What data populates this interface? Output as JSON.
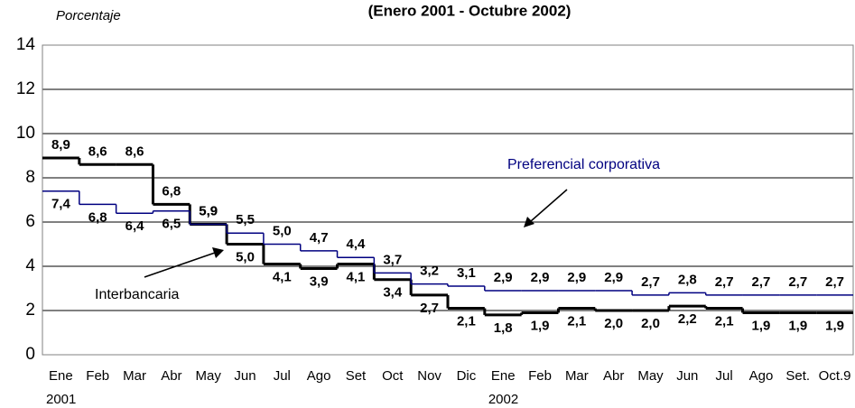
{
  "chart_data": {
    "type": "step",
    "title": "(Enero 2001 - Octubre 2002)",
    "y_label": "Porcentaje",
    "categories": [
      "Ene",
      "Feb",
      "Mar",
      "Abr",
      "May",
      "Jun",
      "Jul",
      "Ago",
      "Set",
      "Oct",
      "Nov",
      "Dic",
      "Ene",
      "Feb",
      "Mar",
      "Abr",
      "May",
      "Jun",
      "Jul",
      "Ago",
      "Set.",
      "Oct.9"
    ],
    "years": [
      {
        "index": 0,
        "label": "2001"
      },
      {
        "index": 12,
        "label": "2002"
      }
    ],
    "series": [
      {
        "name": "Interbancaria",
        "color": "#000000",
        "values": [
          8.9,
          8.6,
          8.6,
          6.8,
          5.9,
          5.0,
          4.1,
          3.9,
          4.1,
          3.4,
          2.7,
          2.1,
          1.8,
          1.9,
          2.1,
          2.0,
          2.0,
          2.2,
          2.1,
          1.9,
          1.9,
          1.9
        ],
        "value_labels": [
          "8,9",
          "8,6",
          "8,6",
          "6,8",
          "5,9",
          "5,0",
          "4,1",
          "3,9",
          "4,1",
          "3,4",
          "2,7",
          "2,1",
          "1,8",
          "1,9",
          "2,1",
          "2,0",
          "2,0",
          "2,2",
          "2,1",
          "1,9",
          "1,9",
          "1,9"
        ]
      },
      {
        "name": "Preferencial corporativa",
        "color": "#000080",
        "values": [
          7.4,
          6.8,
          6.4,
          6.5,
          5.9,
          5.5,
          5.0,
          4.7,
          4.4,
          3.7,
          3.2,
          3.1,
          2.9,
          2.9,
          2.9,
          2.9,
          2.7,
          2.8,
          2.7,
          2.7,
          2.7,
          2.7
        ],
        "value_labels": [
          "7,4",
          "6,8",
          "6,4",
          "6,5",
          "5,9",
          "5,5",
          "5,0",
          "4,7",
          "4,4",
          "3,7",
          "3,2",
          "3,1",
          "2,9",
          "2,9",
          "2,9",
          "2,9",
          "2,7",
          "2,8",
          "2,7",
          "2,7",
          "2,7",
          "2,7"
        ]
      }
    ],
    "ylim": [
      0,
      14
    ],
    "yticks": [
      0,
      2,
      4,
      6,
      8,
      10,
      12,
      14
    ],
    "grid": true
  }
}
